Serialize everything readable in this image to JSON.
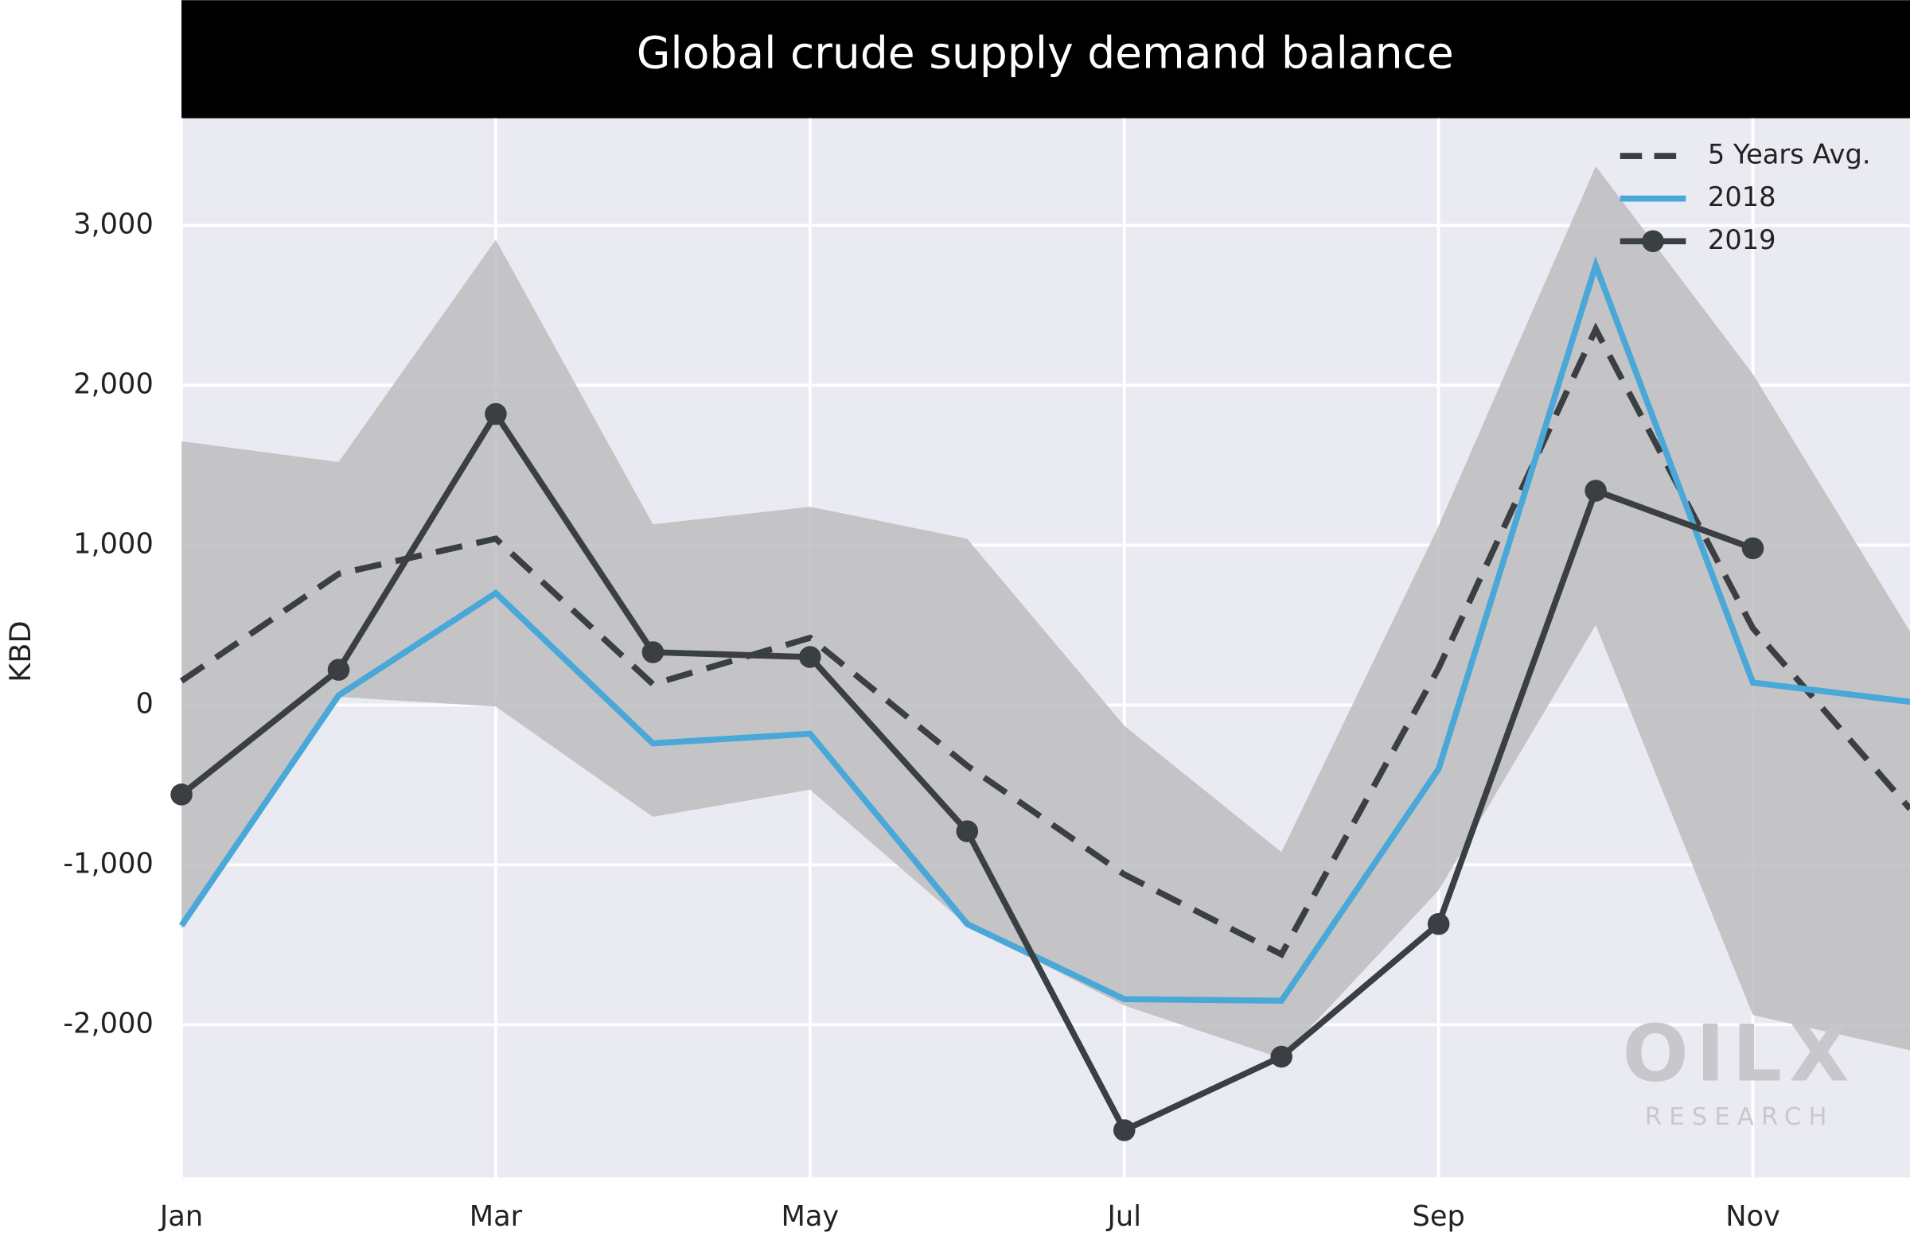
{
  "chart_data": {
    "type": "line",
    "title": "Global crude supply demand balance",
    "ylabel": "KBD",
    "categories": [
      "Jan",
      null,
      "Mar",
      null,
      "May",
      null,
      "Jul",
      null,
      "Sep",
      null,
      "Nov",
      null
    ],
    "ylim": [
      -2955,
      3670
    ],
    "yticks": [
      {
        "value": -2000,
        "label": "-2,000"
      },
      {
        "value": -1000,
        "label": "-1,000"
      },
      0,
      {
        "value": 1000,
        "label": "1,000"
      },
      {
        "value": 2000,
        "label": "2,000"
      },
      {
        "value": 3000,
        "label": "3,000"
      }
    ],
    "grid": true,
    "legend": "upper right",
    "range": {
      "color": "#bdbdc0",
      "low": [
        -1400,
        50,
        -10,
        -700,
        -530,
        -1380,
        -1880,
        -2210,
        -1160,
        500,
        -1940,
        -2160
      ],
      "high": [
        1650,
        1520,
        2910,
        1130,
        1240,
        1040,
        -130,
        -920,
        1120,
        3370,
        2070,
        460
      ]
    },
    "series": [
      {
        "name": "5 Years Avg.",
        "color": "#3a3f44",
        "dashed": true,
        "values": [
          150,
          820,
          1040,
          130,
          420,
          -380,
          -1060,
          -1560,
          230,
          2350,
          480,
          -650
        ]
      },
      {
        "name": "2018",
        "color": "#4aa8d8",
        "values": [
          -1380,
          60,
          700,
          -240,
          -180,
          -1370,
          -1840,
          -1850,
          -400,
          2750,
          140,
          20
        ]
      },
      {
        "name": "2019",
        "color": "#3a3f44",
        "markers": true,
        "values": [
          -560,
          220,
          1820,
          330,
          300,
          -790,
          -2660,
          -2200,
          -1370,
          1340,
          980,
          null
        ]
      }
    ],
    "watermark": [
      "OILX",
      "RESEARCH"
    ]
  }
}
